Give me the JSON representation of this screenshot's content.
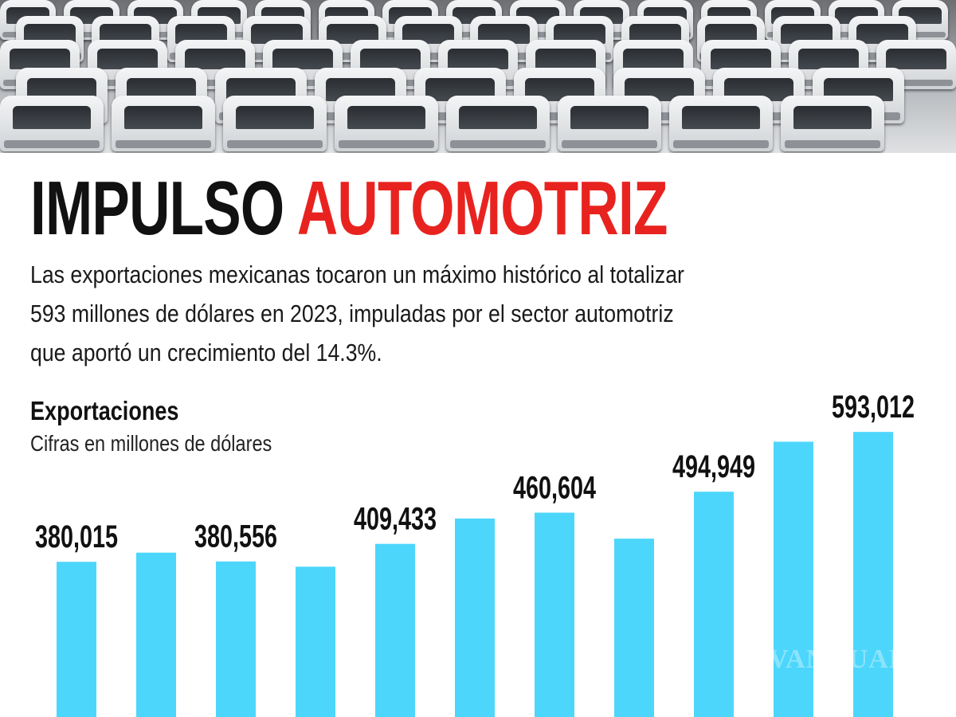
{
  "headline": {
    "part1": "IMPULSO",
    "part2": "AUTOMOTRIZ",
    "color_accent": "#e8231f"
  },
  "lede": {
    "lines": [
      "Las exportaciones mexicanas tocaron un máximo histórico al totalizar",
      "593 millones de dólares en 2023, impuladas por el sector automotriz",
      "que aportó un crecimiento del 14.3%."
    ]
  },
  "photo": {
    "subject": "car-lot-photo"
  },
  "watermark": "VANGUARDIA",
  "chart_data": {
    "type": "bar",
    "title": "Exportaciones",
    "subtitle": "Cifras en millones de dólares",
    "bar_color": "#4dd6fb",
    "values": [
      380015,
      395000,
      380556,
      372000,
      409433,
      451000,
      460604,
      418000,
      494949,
      577000,
      593012
    ],
    "data_labels": [
      "380,015",
      null,
      "380,556",
      null,
      "409,433",
      null,
      "460,604",
      null,
      "494,949",
      null,
      "593,012"
    ],
    "grid": false,
    "legend": "none"
  }
}
